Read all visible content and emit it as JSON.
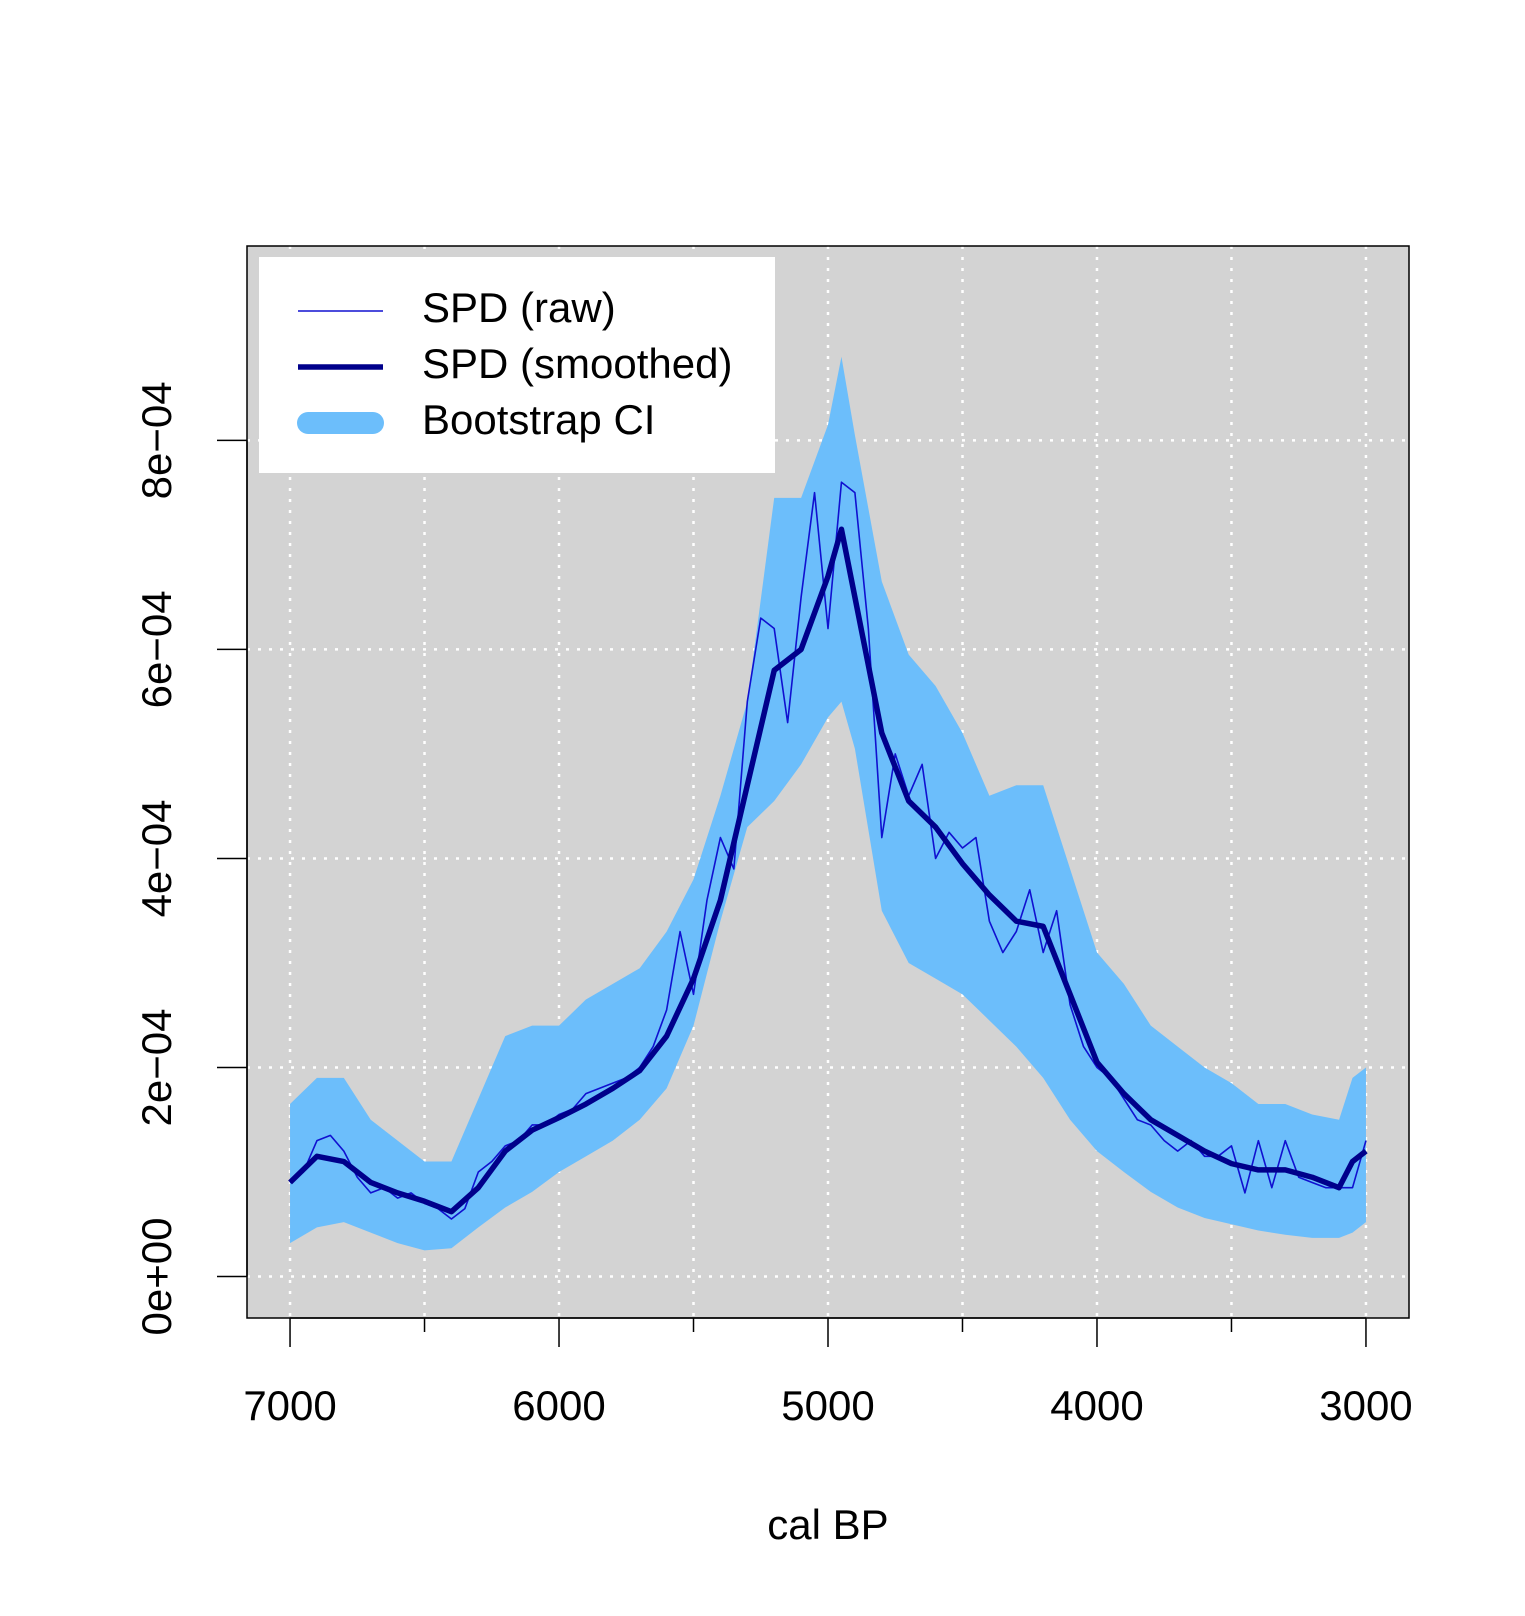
{
  "chart_data": {
    "type": "line",
    "x_label": "cal BP",
    "xlim": [
      7160,
      2840
    ],
    "ylim": [
      -3.97e-05,
      0.000986
    ],
    "xticks": [
      7000,
      6000,
      5000,
      4000,
      3000
    ],
    "xminorticks": [
      6500,
      5500,
      4500,
      3500
    ],
    "yticks": [
      {
        "value": 0,
        "label": "0e+00"
      },
      {
        "value": 0.0002,
        "label": "2e−04"
      },
      {
        "value": 0.0004,
        "label": "4e−04"
      },
      {
        "value": 0.0006,
        "label": "6e−04"
      },
      {
        "value": 0.0008,
        "label": "8e−04"
      }
    ],
    "grid": true,
    "legend": "topleft",
    "background": "#d3d3d3",
    "x": [
      7000,
      6900,
      6800,
      6700,
      6600,
      6500,
      6400,
      6300,
      6200,
      6100,
      6000,
      5900,
      5800,
      5700,
      5600,
      5500,
      5400,
      5300,
      5200,
      5100,
      5000,
      4950,
      4900,
      4800,
      4700,
      4600,
      4500,
      4400,
      4300,
      4200,
      4100,
      4000,
      3900,
      3800,
      3700,
      3600,
      3500,
      3400,
      3300,
      3200,
      3100,
      3050,
      3000
    ],
    "series": [
      {
        "name": "SPD (raw)",
        "color": "#1010d0",
        "x": [
          7000,
          6950,
          6900,
          6850,
          6800,
          6750,
          6700,
          6650,
          6600,
          6550,
          6500,
          6450,
          6400,
          6350,
          6300,
          6250,
          6200,
          6150,
          6100,
          6050,
          6000,
          5950,
          5900,
          5850,
          5800,
          5750,
          5700,
          5650,
          5600,
          5550,
          5500,
          5450,
          5400,
          5350,
          5300,
          5250,
          5200,
          5150,
          5100,
          5050,
          5000,
          4950,
          4900,
          4850,
          4800,
          4750,
          4700,
          4650,
          4600,
          4550,
          4500,
          4450,
          4400,
          4350,
          4300,
          4250,
          4200,
          4150,
          4100,
          4050,
          4000,
          3950,
          3900,
          3850,
          3800,
          3750,
          3700,
          3650,
          3600,
          3550,
          3500,
          3450,
          3400,
          3350,
          3300,
          3250,
          3200,
          3150,
          3100,
          3050,
          3000
        ],
        "values": [
          9e-05,
          0.0001,
          0.00013,
          0.000135,
          0.00012,
          9.5e-05,
          8e-05,
          8.5e-05,
          7.5e-05,
          8e-05,
          7e-05,
          6.5e-05,
          5.5e-05,
          6.5e-05,
          0.0001,
          0.00011,
          0.000125,
          0.00013,
          0.000145,
          0.000145,
          0.000155,
          0.00016,
          0.000175,
          0.00018,
          0.000185,
          0.00019,
          0.0002,
          0.00022,
          0.000255,
          0.00033,
          0.00027,
          0.00036,
          0.00042,
          0.00039,
          0.00055,
          0.00063,
          0.00062,
          0.00053,
          0.00065,
          0.00075,
          0.00062,
          0.00076,
          0.00075,
          0.00062,
          0.00042,
          0.0005,
          0.00046,
          0.00049,
          0.0004,
          0.000425,
          0.00041,
          0.00042,
          0.00034,
          0.00031,
          0.00033,
          0.00037,
          0.00031,
          0.00035,
          0.00026,
          0.00022,
          0.0002,
          0.00019,
          0.00017,
          0.00015,
          0.000145,
          0.00013,
          0.00012,
          0.00013,
          0.000115,
          0.000115,
          0.000125,
          8e-05,
          0.00013,
          8.5e-05,
          0.00013,
          9.5e-05,
          9e-05,
          8.5e-05,
          8.5e-05,
          8.5e-05,
          0.00013
        ]
      },
      {
        "name": "SPD (smoothed)",
        "color": "#00008b",
        "values": [
          9e-05,
          0.000115,
          0.00011,
          9e-05,
          8e-05,
          7.2e-05,
          6.2e-05,
          8.5e-05,
          0.00012,
          0.00014,
          0.000152,
          0.000165,
          0.00018,
          0.000197,
          0.00023,
          0.000285,
          0.00036,
          0.00047,
          0.00058,
          0.0006,
          0.00067,
          0.000715,
          0.00065,
          0.00052,
          0.000455,
          0.00043,
          0.000395,
          0.000365,
          0.00034,
          0.000335,
          0.00027,
          0.000205,
          0.000175,
          0.00015,
          0.000135,
          0.00012,
          0.000108,
          0.000102,
          0.000102,
          9.5e-05,
          8.5e-05,
          0.00011,
          0.00012
        ]
      },
      {
        "name": "Bootstrap CI",
        "color": "#6cbefb",
        "upper": [
          0.000165,
          0.00019,
          0.00019,
          0.00015,
          0.00013,
          0.00011,
          0.00011,
          0.00017,
          0.00023,
          0.00024,
          0.00024,
          0.000265,
          0.00028,
          0.000295,
          0.00033,
          0.00038,
          0.00046,
          0.00055,
          0.000745,
          0.000745,
          0.000815,
          0.00088,
          0.000805,
          0.000665,
          0.000595,
          0.000565,
          0.00052,
          0.00046,
          0.00047,
          0.00047,
          0.00039,
          0.00031,
          0.00028,
          0.00024,
          0.00022,
          0.0002,
          0.000185,
          0.000165,
          0.000165,
          0.000155,
          0.00015,
          0.00019,
          0.0002
        ],
        "lower": [
          3.2e-05,
          4.7e-05,
          5.2e-05,
          4.2e-05,
          3.2e-05,
          2.5e-05,
          2.7e-05,
          4.7e-05,
          6.6e-05,
          8.1e-05,
          0.0001,
          0.000115,
          0.00013,
          0.00015,
          0.00018,
          0.00024,
          0.00034,
          0.00043,
          0.000455,
          0.00049,
          0.000535,
          0.00055,
          0.000505,
          0.00035,
          0.0003,
          0.000285,
          0.00027,
          0.000245,
          0.00022,
          0.00019,
          0.00015,
          0.00012,
          0.0001,
          8.1e-05,
          6.6e-05,
          5.6e-05,
          5e-05,
          4.4e-05,
          4e-05,
          3.7e-05,
          3.7e-05,
          4.2e-05,
          5.2e-05
        ]
      }
    ]
  }
}
